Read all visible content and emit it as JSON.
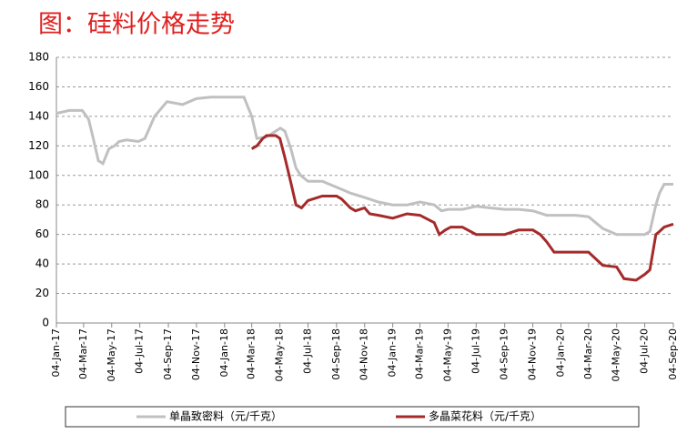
{
  "chart_data": {
    "type": "line",
    "title": "图：硅料价格走势",
    "ylim": [
      0,
      180
    ],
    "yticks": [
      0,
      20,
      40,
      60,
      80,
      100,
      120,
      140,
      160,
      180
    ],
    "grid": true,
    "legend": "bottom",
    "xlim": [
      "2017-01-04",
      "2020-09-04"
    ],
    "xticks": [
      {
        "value": "2017-01-04",
        "label": "04-Jan-17"
      },
      {
        "value": "2017-03-04",
        "label": "04-Mar-17"
      },
      {
        "value": "2017-05-04",
        "label": "04-May-17"
      },
      {
        "value": "2017-07-04",
        "label": "04-Jul-17"
      },
      {
        "value": "2017-09-04",
        "label": "04-Sep-17"
      },
      {
        "value": "2017-11-04",
        "label": "04-Nov-17"
      },
      {
        "value": "2018-01-04",
        "label": "04-Jan-18"
      },
      {
        "value": "2018-03-04",
        "label": "04-Mar-18"
      },
      {
        "value": "2018-05-04",
        "label": "04-May-18"
      },
      {
        "value": "2018-07-04",
        "label": "04-Jul-18"
      },
      {
        "value": "2018-09-04",
        "label": "04-Sep-18"
      },
      {
        "value": "2018-11-04",
        "label": "04-Nov-18"
      },
      {
        "value": "2019-01-04",
        "label": "04-Jan-19"
      },
      {
        "value": "2019-03-04",
        "label": "04-Mar-19"
      },
      {
        "value": "2019-05-04",
        "label": "04-May-19"
      },
      {
        "value": "2019-07-04",
        "label": "04-Jul-19"
      },
      {
        "value": "2019-09-04",
        "label": "04-Sep-19"
      },
      {
        "value": "2019-11-04",
        "label": "04-Nov-19"
      },
      {
        "value": "2020-01-04",
        "label": "04-Jan-20"
      },
      {
        "value": "2020-03-04",
        "label": "04-Mar-20"
      },
      {
        "value": "2020-05-04",
        "label": "04-May-20"
      },
      {
        "value": "2020-07-04",
        "label": "04-Jul-20"
      },
      {
        "value": "2020-09-04",
        "label": "04-Sep-20"
      }
    ],
    "series": [
      {
        "name": "单晶致密料（元/千克）",
        "color": "#c0c0c0",
        "x": [
          "2017-01-04",
          "2017-02-01",
          "2017-03-01",
          "2017-03-15",
          "2017-03-25",
          "2017-04-05",
          "2017-04-15",
          "2017-04-28",
          "2017-05-10",
          "2017-05-20",
          "2017-06-05",
          "2017-07-01",
          "2017-07-15",
          "2017-08-05",
          "2017-09-01",
          "2017-10-05",
          "2017-11-04",
          "2017-12-05",
          "2018-01-04",
          "2018-02-15",
          "2018-03-04",
          "2018-03-15",
          "2018-04-05",
          "2018-04-25",
          "2018-05-05",
          "2018-05-15",
          "2018-05-28",
          "2018-06-08",
          "2018-06-18",
          "2018-07-04",
          "2018-08-04",
          "2018-09-04",
          "2018-10-04",
          "2018-11-04",
          "2018-12-04",
          "2019-01-04",
          "2019-02-04",
          "2019-03-04",
          "2019-04-04",
          "2019-04-20",
          "2019-05-04",
          "2019-06-04",
          "2019-07-04",
          "2019-08-04",
          "2019-09-04",
          "2019-10-04",
          "2019-11-04",
          "2019-12-04",
          "2020-01-04",
          "2020-02-04",
          "2020-03-04",
          "2020-04-04",
          "2020-05-04",
          "2020-06-04",
          "2020-07-04",
          "2020-07-15",
          "2020-07-28",
          "2020-08-05",
          "2020-08-15",
          "2020-09-04"
        ],
        "values": [
          142,
          144,
          144,
          138,
          125,
          110,
          108,
          118,
          120,
          123,
          124,
          123,
          125,
          140,
          150,
          148,
          152,
          153,
          153,
          153,
          140,
          125,
          126,
          130,
          132,
          130,
          118,
          105,
          100,
          96,
          96,
          92,
          88,
          85,
          82,
          80,
          80,
          82,
          80,
          76,
          77,
          77,
          79,
          78,
          77,
          77,
          76,
          73,
          73,
          73,
          72,
          64,
          60,
          60,
          60,
          62,
          80,
          88,
          94,
          94
        ]
      },
      {
        "name": "多晶菜花料（元/千克）",
        "color": "#a52a2a",
        "x": [
          "2018-03-04",
          "2018-03-15",
          "2018-03-28",
          "2018-04-05",
          "2018-04-25",
          "2018-05-04",
          "2018-05-15",
          "2018-05-28",
          "2018-06-08",
          "2018-06-20",
          "2018-07-04",
          "2018-08-04",
          "2018-09-04",
          "2018-09-15",
          "2018-10-04",
          "2018-10-15",
          "2018-11-04",
          "2018-11-15",
          "2018-12-04",
          "2019-01-04",
          "2019-02-04",
          "2019-03-04",
          "2019-04-04",
          "2019-04-15",
          "2019-04-28",
          "2019-05-10",
          "2019-06-04",
          "2019-07-04",
          "2019-08-04",
          "2019-09-04",
          "2019-10-04",
          "2019-11-04",
          "2019-11-20",
          "2019-12-04",
          "2019-12-20",
          "2020-01-04",
          "2020-02-04",
          "2020-03-04",
          "2020-04-04",
          "2020-05-04",
          "2020-05-20",
          "2020-06-15",
          "2020-07-04",
          "2020-07-15",
          "2020-07-28",
          "2020-08-05",
          "2020-08-15",
          "2020-09-04"
        ],
        "values": [
          118,
          120,
          125,
          127,
          127,
          125,
          112,
          95,
          80,
          78,
          83,
          86,
          86,
          84,
          78,
          76,
          78,
          74,
          73,
          71,
          74,
          73,
          68,
          60,
          63,
          65,
          65,
          60,
          60,
          60,
          63,
          63,
          60,
          55,
          48,
          48,
          48,
          48,
          39,
          38,
          30,
          29,
          33,
          36,
          60,
          62,
          65,
          67
        ]
      }
    ]
  }
}
